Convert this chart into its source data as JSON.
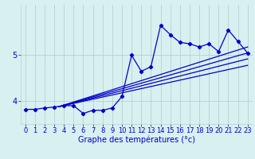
{
  "x": [
    0,
    1,
    2,
    3,
    4,
    5,
    6,
    7,
    8,
    9,
    10,
    11,
    12,
    13,
    14,
    15,
    16,
    17,
    18,
    19,
    20,
    21,
    22,
    23
  ],
  "y_main": [
    3.82,
    3.82,
    3.85,
    3.87,
    3.9,
    3.9,
    3.73,
    3.8,
    3.8,
    3.85,
    4.1,
    5.0,
    4.65,
    4.75,
    5.65,
    5.45,
    5.28,
    5.25,
    5.18,
    5.25,
    5.08,
    5.55,
    5.3,
    5.05
  ],
  "regression_lines": [
    {
      "x0": 3.5,
      "y0": 3.88,
      "x1": 23,
      "y1": 5.05
    },
    {
      "x0": 3.5,
      "y0": 3.88,
      "x1": 23,
      "y1": 4.92
    },
    {
      "x0": 3.5,
      "y0": 3.88,
      "x1": 23,
      "y1": 4.78
    },
    {
      "x0": 3.5,
      "y0": 3.88,
      "x1": 23,
      "y1": 5.18
    }
  ],
  "line_color": "#0000cc",
  "bg_color": "#d8f0f0",
  "grid_color": "#b8d0d0",
  "xlabel": "Graphe des températures (°c)",
  "xlim": [
    -0.5,
    23.5
  ],
  "ylim": [
    3.5,
    6.1
  ],
  "yticks": [
    4,
    5
  ],
  "ytick_labels": [
    "4",
    "5"
  ],
  "xticks": [
    0,
    1,
    2,
    3,
    4,
    5,
    6,
    7,
    8,
    9,
    10,
    11,
    12,
    13,
    14,
    15,
    16,
    17,
    18,
    19,
    20,
    21,
    22,
    23
  ],
  "marker": "D",
  "markersize": 2.2,
  "linewidth": 0.9,
  "xlabel_fontsize": 7,
  "tick_fontsize": 6,
  "ytick_fontsize": 7
}
